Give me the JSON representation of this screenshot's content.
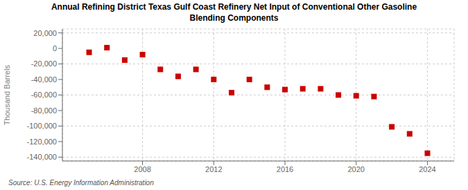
{
  "chart_data": {
    "type": "scatter",
    "title": "Annual Refining District Texas Gulf Coast Refinery Net Input of Conventional Other Gasoline\nBlending Components",
    "ylabel": "Thousand Barrels",
    "annotations": [
      "Source: U.S. Energy Information Administration"
    ],
    "x": [
      2005,
      2006,
      2007,
      2008,
      2009,
      2010,
      2011,
      2012,
      2013,
      2014,
      2015,
      2016,
      2017,
      2018,
      2019,
      2020,
      2021,
      2022,
      2023,
      2024
    ],
    "values": [
      -5000,
      1000,
      -15000,
      -8000,
      -27000,
      -36000,
      -27000,
      -40000,
      -57000,
      -40000,
      -50000,
      -53000,
      -52000,
      -52000,
      -60000,
      -61000,
      -62000,
      -101000,
      -110000,
      -135000
    ],
    "color": "#cc0000",
    "marker": "square",
    "ylim": [
      -145000,
      25000
    ],
    "yticks": [
      {
        "value": 20000,
        "label": "20,000"
      },
      0,
      {
        "value": -20000,
        "label": "-20,000"
      },
      {
        "value": -40000,
        "label": "-40,000"
      },
      {
        "value": -60000,
        "label": "-60,000"
      },
      {
        "value": -80000,
        "label": "-80,000"
      },
      {
        "value": -100000,
        "label": "-100,000"
      },
      {
        "value": -120000,
        "label": "-120,000"
      },
      {
        "value": -140000,
        "label": "-140,000"
      }
    ],
    "xlim": [
      2003.5,
      2025.5
    ],
    "xticks": [
      2008,
      2012,
      2016,
      2020,
      2024
    ],
    "grid": true
  }
}
